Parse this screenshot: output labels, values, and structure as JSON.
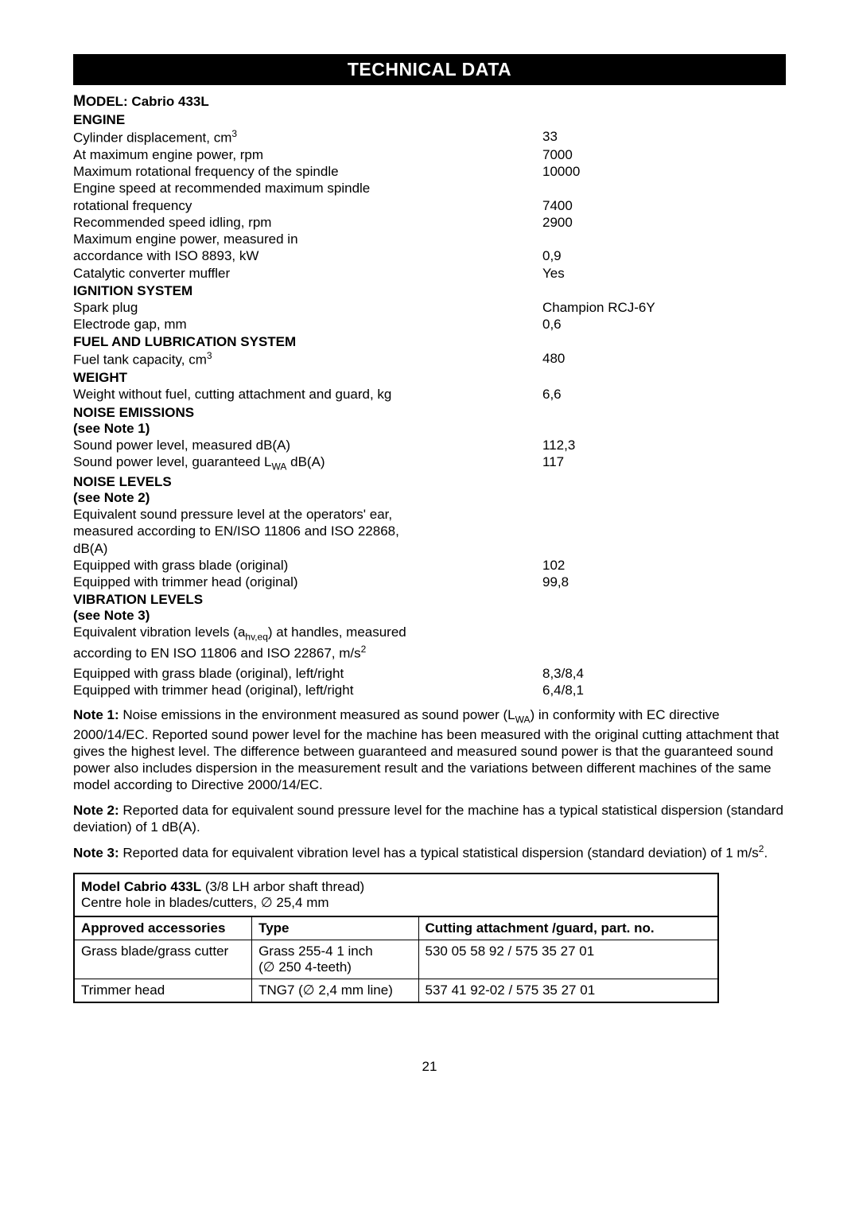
{
  "header": "TECHNICAL DATA",
  "model_prefix": "M",
  "model_label": "ODEL: Cabrio 433L",
  "sections": {
    "engine": {
      "title": "ENGINE",
      "rows": [
        {
          "label": "Cylinder displacement, cm",
          "sup": "3",
          "value": "33"
        },
        {
          "label": "At maximum engine power, rpm",
          "value": "7000"
        },
        {
          "label": "Maximum rotational frequency of the spindle",
          "value": "10000"
        },
        {
          "label": "Engine speed at recommended maximum spindle",
          "value": ""
        },
        {
          "label": "rotational frequency",
          "value": "7400"
        },
        {
          "label": "Recommended speed idling, rpm",
          "value": "2900"
        },
        {
          "label": "Maximum engine power, measured in",
          "value": ""
        },
        {
          "label": "accordance with ISO 8893, kW",
          "value": "0,9"
        },
        {
          "label": "Catalytic converter muffler",
          "value": "Yes"
        }
      ]
    },
    "ignition": {
      "title": "IGNITION SYSTEM",
      "rows": [
        {
          "label": "Spark plug",
          "value": "Champion RCJ-6Y"
        },
        {
          "label": "Electrode gap, mm",
          "value": "0,6"
        }
      ]
    },
    "fuel": {
      "title": "FUEL AND LUBRICATION SYSTEM",
      "rows": [
        {
          "label": "Fuel tank capacity, cm",
          "sup": "3",
          "value": "480"
        }
      ]
    },
    "weight": {
      "title": "WEIGHT",
      "rows": [
        {
          "label": "Weight without fuel, cutting attachment and guard, kg",
          "value": "6,6"
        }
      ]
    },
    "noise_emissions": {
      "title": "NOISE EMISSIONS",
      "note": "(see Note 1)",
      "rows": [
        {
          "label": "Sound power level, measured dB(A)",
          "value": "112,3"
        },
        {
          "label_pre": "Sound power level, guaranteed L",
          "sub": "WA",
          "label_post": " dB(A)",
          "value": "117"
        }
      ]
    },
    "noise_levels": {
      "title": "NOISE LEVELS",
      "note": "(see Note 2)",
      "desc": [
        "Equivalent sound pressure level at the operators' ear,",
        "measured according to EN/ISO 11806 and ISO 22868,",
        "dB(A)"
      ],
      "rows": [
        {
          "label": "Equipped with grass blade (original)",
          "value": "102"
        },
        {
          "label": "Equipped with trimmer head (original)",
          "value": "99,8"
        }
      ]
    },
    "vibration": {
      "title": "VIBRATION LEVELS",
      "note": "(see Note 3)",
      "desc_pre": "Equivalent vibration levels (a",
      "desc_sub": "hv,eq",
      "desc_mid": ") at handles, measured",
      "desc_line2_pre": "according to EN ISO 11806 and ISO 22867, m/s",
      "desc_sup": "2",
      "rows": [
        {
          "label": "Equipped with grass blade (original), left/right",
          "value": "8,3/8,4"
        },
        {
          "label": "Equipped with trimmer head (original), left/right",
          "value": "6,4/8,1"
        }
      ]
    }
  },
  "notes": {
    "n1_label": "Note 1:",
    "n1_text": "  Noise emissions in the environment measured as sound power (L",
    "n1_sub": "WA",
    "n1_rest": ") in conformity with EC directive 2000/14/EC. Reported sound power level for the machine has been measured with the original cutting attachment that gives the highest level. The difference between guaranteed and measured sound power is that the guaranteed sound power also includes dispersion in the measurement result and the variations between different machines of the same model according to Directive 2000/14/EC.",
    "n2_label": "Note 2:",
    "n2_text": "  Reported data for equivalent sound pressure level for the machine has a typical statistical dispersion (standard deviation) of 1 dB(A).",
    "n3_label": "Note 3:",
    "n3_text_pre": "  Reported data for equivalent vibration level has a typical statistical dispersion (standard deviation) of 1 m/s",
    "n3_sup": "2",
    "n3_text_post": "."
  },
  "table": {
    "title_bold": "Model Cabrio 433L",
    "title_rest": " (3/8 LH arbor shaft thread)",
    "subtitle": "Centre hole in blades/cutters, ∅ 25,4 mm",
    "header": [
      "Approved accessories",
      "Type",
      "Cutting attachment /guard, part. no."
    ],
    "rows": [
      [
        "Grass blade/grass cutter",
        "Grass 255-4 1 inch\n(∅ 250 4-teeth)",
        "530 05 58 92 / 575 35 27 01"
      ],
      [
        "Trimmer head",
        "TNG7 (∅ 2,4 mm line)",
        "537 41 92-02 / 575 35 27 01"
      ]
    ],
    "col_widths": [
      "224px",
      "210px",
      "378px"
    ]
  },
  "page_number": "21"
}
